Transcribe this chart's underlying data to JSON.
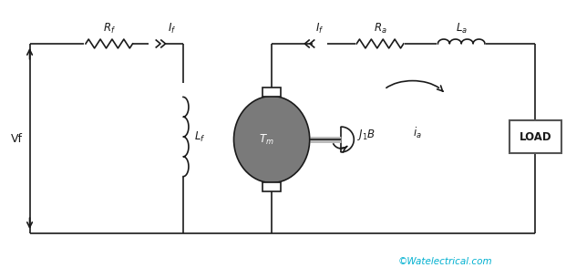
{
  "bg_color": "#ffffff",
  "line_color": "#1a1a1a",
  "motor_color": "#7a7a7a",
  "watermark_color": "#00b0d0",
  "watermark": "©Watelectrical.com",
  "label_LOAD": "LOAD"
}
